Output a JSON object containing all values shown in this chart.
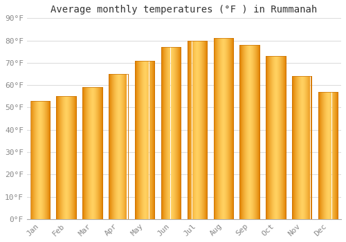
{
  "title": "Average monthly temperatures (°F ) in Rummanah",
  "months": [
    "Jan",
    "Feb",
    "Mar",
    "Apr",
    "May",
    "Jun",
    "Jul",
    "Aug",
    "Sep",
    "Oct",
    "Nov",
    "Dec"
  ],
  "values": [
    53,
    55,
    59,
    65,
    71,
    77,
    80,
    81,
    78,
    73,
    64,
    57
  ],
  "bar_color_main": "#FFA500",
  "bar_color_light": "#FFD060",
  "bar_color_dark": "#E08000",
  "bar_edge_color": "#C87000",
  "background_color": "#FFFFFF",
  "grid_color": "#DDDDDD",
  "ylim": [
    0,
    90
  ],
  "ytick_step": 10,
  "title_fontsize": 10,
  "tick_fontsize": 8,
  "tick_color": "#888888",
  "bar_width": 0.75
}
